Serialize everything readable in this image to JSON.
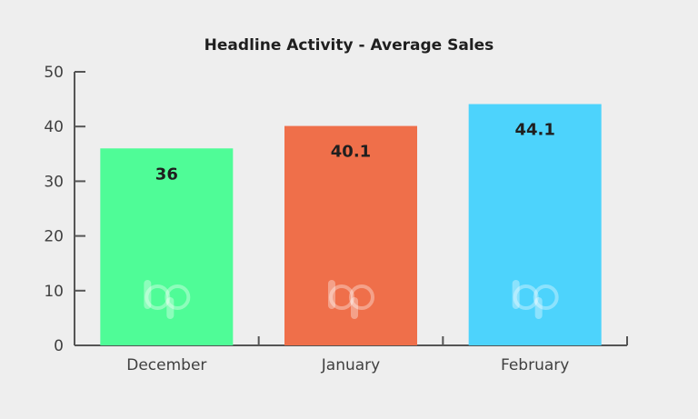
{
  "chart_data": {
    "type": "bar",
    "title": "Headline Activity - Average Sales",
    "categories": [
      "December",
      "January",
      "February"
    ],
    "values": [
      36,
      40.1,
      44.1
    ],
    "value_labels": [
      "36",
      "40.1",
      "44.1"
    ],
    "colors": [
      "#4ffc97",
      "#ef6f4a",
      "#4dd3fc"
    ],
    "ylim": [
      0,
      50
    ],
    "yticks": [
      0,
      10,
      20,
      30,
      40,
      50
    ],
    "ytick_labels": [
      "0",
      "10",
      "20",
      "30",
      "40",
      "50"
    ],
    "xlabel": "",
    "ylabel": "",
    "grid": false,
    "legend": "none",
    "watermark": "bp"
  }
}
